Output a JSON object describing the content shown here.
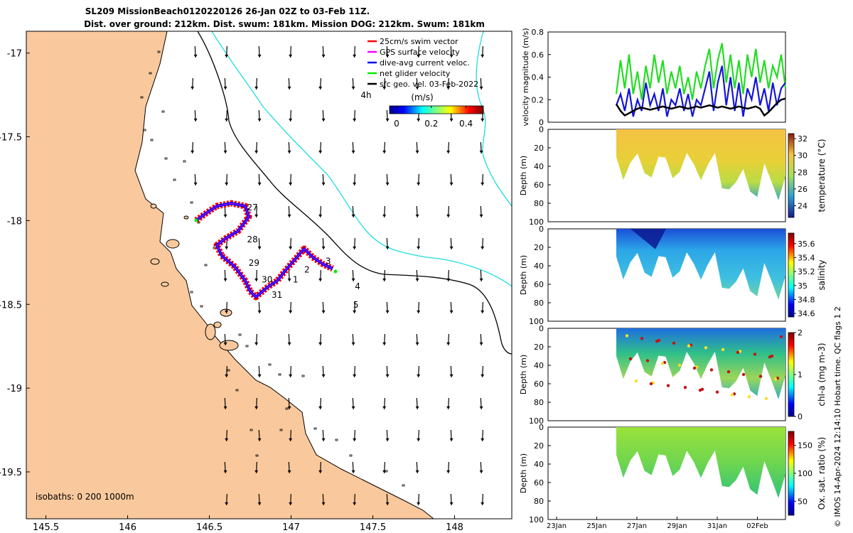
{
  "title_line1": "SL209 MissionBeach0120220126 26-Jan 02Z to 03-Feb 11Z.",
  "title_line2": "Dist. over ground: 212km. Dist. swum: 181km. Mission DOG: 212km. Swum: 181km",
  "credit": "© IMOS 14-Apr-2024 12:14:10 Hobart time. QC flags 1  2",
  "map": {
    "xlim": [
      145.38,
      148.35
    ],
    "ylim": [
      -19.78,
      -16.87
    ],
    "xticks": [
      "145.5",
      "146",
      "146.5",
      "147",
      "147.5",
      "148"
    ],
    "xtick_vals": [
      145.5,
      146,
      146.5,
      147,
      147.5,
      148
    ],
    "yticks": [
      "-17",
      "-17.5",
      "-18",
      "-18.5",
      "-19",
      "-19.5"
    ],
    "ytick_vals": [
      -17,
      -17.5,
      -18,
      -18.5,
      -19,
      -19.5
    ],
    "land_color": "#f9c99d",
    "isobaths_label": "isobaths: 0   200  1000m",
    "legend": [
      {
        "label": "25cm/s swim vector",
        "color": "#ff0000"
      },
      {
        "label": "GPS surface velocity",
        "color": "#ff00ff"
      },
      {
        "label": "dive-avg current veloc.",
        "color": "#0000ff"
      },
      {
        "label": "net glider velocity",
        "color": "#00ee00"
      },
      {
        "label": "sfc geo. vel. 03-Feb-2022",
        "color": "#000000"
      }
    ],
    "colorbar_title": "(m/s)",
    "colorbar_ticks": [
      "0",
      "0.2",
      "0.4"
    ],
    "colorbar_tick_vals": [
      0,
      0.2,
      0.4
    ],
    "scale_label": "4h",
    "day_labels": [
      {
        "t": "27",
        "lon": 146.73,
        "lat": -17.94
      },
      {
        "t": "28",
        "lon": 146.73,
        "lat": -18.13
      },
      {
        "t": "29",
        "lon": 146.74,
        "lat": -18.27
      },
      {
        "t": "30",
        "lon": 146.82,
        "lat": -18.37
      },
      {
        "t": "31",
        "lon": 146.88,
        "lat": -18.46
      },
      {
        "t": "1",
        "lon": 147.01,
        "lat": -18.37
      },
      {
        "t": "2",
        "lon": 147.08,
        "lat": -18.31
      },
      {
        "t": "3",
        "lon": 147.21,
        "lat": -18.26
      },
      {
        "t": "4",
        "lon": 147.39,
        "lat": -18.41
      },
      {
        "t": "5",
        "lon": 147.38,
        "lat": -18.52
      }
    ]
  },
  "velocity_panel": {
    "ylabel": "velocity magnitude (m/s)",
    "ylim": [
      0,
      0.8
    ],
    "yticks": [
      "0",
      "0.2",
      "0.4",
      "0.6",
      "0.8"
    ],
    "ytick_vals": [
      0,
      0.2,
      0.4,
      0.6,
      0.8
    ],
    "series": [
      {
        "name": "net glider velocity",
        "color": "#22dd22",
        "values": [
          0.25,
          0.55,
          0.3,
          0.6,
          0.25,
          0.45,
          0.2,
          0.5,
          0.3,
          0.6,
          0.35,
          0.55,
          0.25,
          0.45,
          0.3,
          0.5,
          0.25,
          0.4,
          0.2,
          0.45,
          0.3,
          0.5,
          0.65,
          0.3,
          0.55,
          0.7,
          0.35,
          0.6,
          0.3,
          0.55,
          0.25,
          0.6,
          0.4,
          0.65,
          0.35,
          0.55,
          0.3,
          0.5,
          0.4,
          0.6,
          0.3
        ]
      },
      {
        "name": "dive-avg current veloc.",
        "color": "#1515d8",
        "values": [
          0.15,
          0.25,
          0.1,
          0.3,
          0.05,
          0.2,
          0.1,
          0.35,
          0.15,
          0.25,
          0.1,
          0.3,
          0.05,
          0.2,
          0.15,
          0.3,
          0.1,
          0.25,
          0.05,
          0.2,
          0.15,
          0.3,
          0.45,
          0.1,
          0.35,
          0.5,
          0.15,
          0.4,
          0.1,
          0.35,
          0.05,
          0.3,
          0.2,
          0.4,
          0.15,
          0.3,
          0.1,
          0.35,
          0.15,
          0.3,
          0.35
        ]
      },
      {
        "name": "sfc geo. vel.",
        "color": "#000000",
        "values": [
          0.16,
          0.1,
          0.06,
          0.08,
          0.1,
          0.12,
          0.13,
          0.12,
          0.11,
          0.12,
          0.13,
          0.14,
          0.13,
          0.12,
          0.13,
          0.14,
          0.13,
          0.12,
          0.13,
          0.14,
          0.13,
          0.14,
          0.15,
          0.14,
          0.13,
          0.14,
          0.13,
          0.12,
          0.13,
          0.14,
          0.13,
          0.12,
          0.13,
          0.14,
          0.12,
          0.06,
          0.09,
          0.13,
          0.17,
          0.2,
          0.21
        ]
      }
    ]
  },
  "depth_panels": [
    {
      "name": "temperature",
      "cbar_label": "temperature (°C)",
      "ylabel": "Depth (m)",
      "cticks": [
        "24",
        "26",
        "28",
        "30",
        "32"
      ],
      "ctick_vals": [
        24,
        26,
        28,
        30,
        32
      ],
      "clim": [
        22.6,
        32.6
      ]
    },
    {
      "name": "salinity",
      "cbar_label": "salinity",
      "ylabel": "Depth (m)",
      "cticks": [
        "34.6",
        "34.8",
        "35",
        "35.2",
        "35.4",
        "35.6"
      ],
      "ctick_vals": [
        34.6,
        34.8,
        35,
        35.2,
        35.4,
        35.6
      ],
      "clim": [
        34.55,
        35.75
      ]
    },
    {
      "name": "chla",
      "cbar_label": "chl-a (mg m-3)",
      "ylabel": "Depth (m)",
      "cticks": [
        "0",
        "1",
        "2"
      ],
      "ctick_vals": [
        0,
        1,
        2
      ],
      "clim": [
        0,
        2
      ]
    },
    {
      "name": "oxygen",
      "cbar_label": "Ox. sat. ratio (%)",
      "ylabel": "Depth (m)",
      "cticks": [
        "50",
        "100",
        "150"
      ],
      "ctick_vals": [
        50,
        100,
        150
      ],
      "clim": [
        25,
        175
      ]
    }
  ],
  "depth_axis": {
    "ylim": [
      0,
      100
    ],
    "yticks": [
      "0",
      "20",
      "40",
      "60",
      "80",
      "100"
    ],
    "ytick_vals": [
      0,
      20,
      40,
      60,
      80,
      100
    ]
  },
  "time_axis": {
    "xticks": [
      "23Jan",
      "25Jan",
      "27Jan",
      "29Jan",
      "31Jan",
      "02Feb"
    ]
  }
}
